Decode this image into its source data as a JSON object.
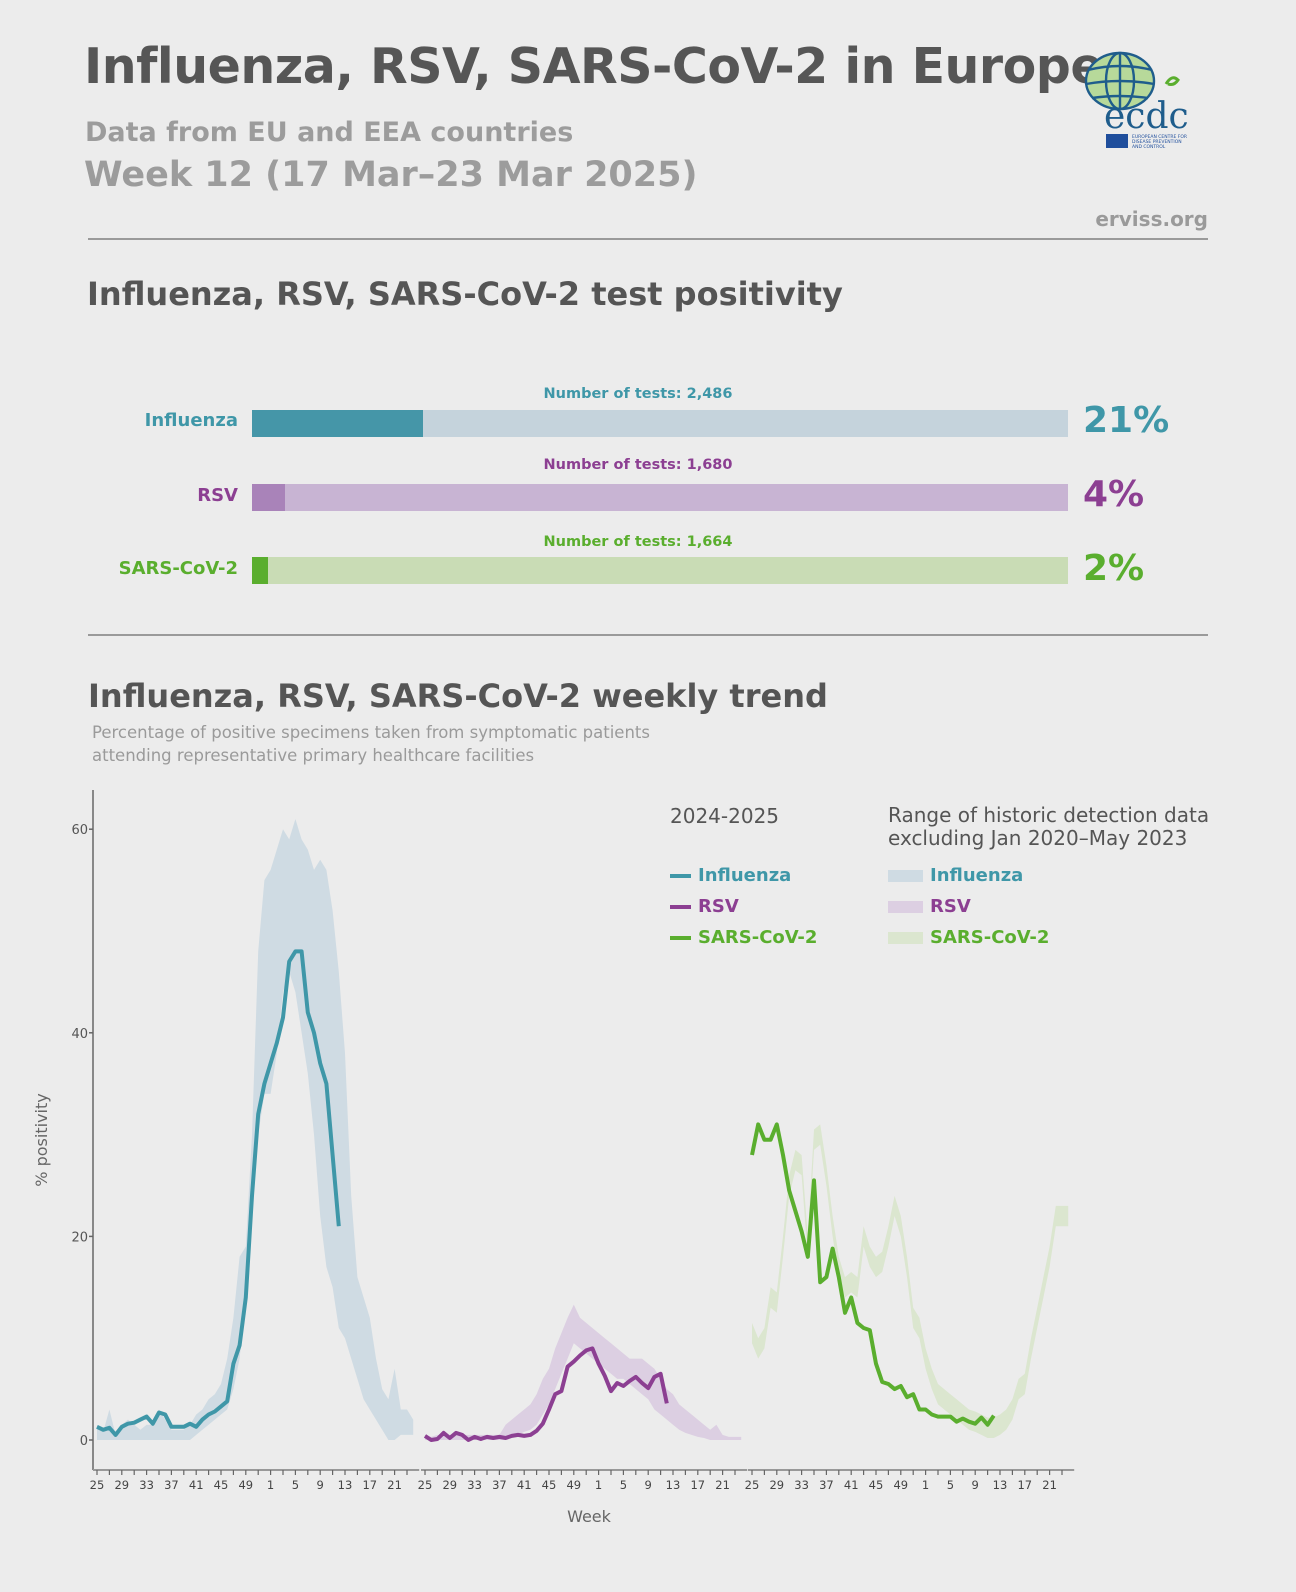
{
  "header": {
    "title": "Influenza, RSV, SARS-CoV-2 in Europe",
    "subtitle": "Data from EU and EEA countries",
    "week": "Week 12 (17 Mar–23 Mar 2025)",
    "site": "erviss.org",
    "logo": {
      "text": "ecdc",
      "caption": "EUROPEAN CENTRE FOR DISEASE PREVENTION AND CONTROL"
    }
  },
  "positivity": {
    "title": "Influenza, RSV, SARS-CoV-2 test positivity",
    "rows": [
      {
        "label": "Influenza",
        "tests": "Number of tests: 2,486",
        "percent_label": "21%",
        "percent": 21,
        "color": "#3f97a8",
        "fill": "#4596a8",
        "track": "#c5d3dc"
      },
      {
        "label": "RSV",
        "tests": "Number of tests: 1,680",
        "percent_label": "4%",
        "percent": 4,
        "color": "#8c3f92",
        "fill": "#a983b9",
        "track": "#c8b4d3"
      },
      {
        "label": "SARS-CoV-2",
        "tests": "Number of tests: 1,664",
        "percent_label": "2%",
        "percent": 2,
        "color": "#5aae2e",
        "fill": "#5aae2e",
        "track": "#c9dcb5"
      }
    ]
  },
  "trend": {
    "title": "Influenza, RSV, SARS-CoV-2 weekly trend",
    "subtitle_1": "Percentage of positive specimens taken from symptomatic patients",
    "subtitle_2": "attending representative primary healthcare facilities",
    "legend": {
      "season_title": "2024-2025",
      "historic_title_1": "Range of historic detection data",
      "historic_title_2": "excluding Jan 2020–May 2023",
      "items": [
        "Influenza",
        "RSV",
        "SARS-CoV-2"
      ]
    }
  },
  "chart_data": {
    "type": "line",
    "xlabel": "Week",
    "ylabel": "% positivity",
    "ylim": [
      0,
      62
    ],
    "yticks": [
      0,
      20,
      40,
      60
    ],
    "xticks": [
      25,
      29,
      33,
      37,
      41,
      45,
      49,
      1,
      5,
      9,
      13,
      17,
      21
    ],
    "weeks": [
      25,
      26,
      27,
      28,
      29,
      30,
      31,
      32,
      33,
      34,
      35,
      36,
      37,
      38,
      39,
      40,
      41,
      42,
      43,
      44,
      45,
      46,
      47,
      48,
      49,
      50,
      51,
      52,
      1,
      2,
      3,
      4,
      5,
      6,
      7,
      8,
      9,
      10,
      11,
      12,
      13,
      14,
      15,
      16,
      17,
      18,
      19,
      20,
      21,
      22,
      23,
      24
    ],
    "grid": false,
    "panels": [
      {
        "name": "Influenza",
        "color": "#3f97a8",
        "band_color": "#cfdbe3",
        "season_2024_2025": [
          1.3,
          1,
          1.2,
          0.5,
          1.3,
          1.6,
          1.7,
          2,
          2.3,
          1.6,
          2.7,
          2.5,
          1.3,
          1.3,
          1.3,
          1.6,
          1.3,
          2,
          2.5,
          2.8,
          3.3,
          3.8,
          7.5,
          9.3,
          14,
          24,
          32,
          35,
          37,
          39,
          41.5,
          47,
          48,
          48,
          42,
          40,
          37,
          35,
          28,
          21
        ],
        "historic_min": [
          0,
          0,
          0,
          0,
          0,
          0,
          0,
          0,
          0,
          0,
          0,
          0,
          0,
          0,
          0,
          0,
          0.5,
          1,
          1.5,
          2,
          2.5,
          3,
          5,
          8,
          14,
          22,
          30,
          34,
          34,
          38,
          44,
          46,
          44,
          40,
          36,
          30,
          22,
          17,
          15,
          11,
          10,
          8,
          6,
          4,
          3,
          2,
          1,
          0,
          0,
          0.5,
          0.5,
          0.5
        ],
        "historic_max": [
          1.5,
          0.8,
          3,
          0.5,
          1.5,
          2,
          1.5,
          1,
          1.5,
          1.5,
          3,
          2,
          1,
          1,
          1,
          1.5,
          2.5,
          3,
          4,
          4.5,
          5.5,
          8,
          12,
          18,
          19,
          30,
          48,
          55,
          56,
          58,
          60,
          59,
          61,
          59,
          58,
          56,
          57,
          56,
          52,
          46,
          38,
          24,
          16,
          14,
          12,
          8,
          5,
          4,
          7,
          3,
          3,
          2
        ]
      },
      {
        "name": "RSV",
        "color": "#8c3f92",
        "band_color": "#dccfe2",
        "season_2024_2025": [
          0.4,
          0,
          0.1,
          0.7,
          0.2,
          0.7,
          0.5,
          0,
          0.3,
          0.1,
          0.3,
          0.2,
          0.3,
          0.2,
          0.4,
          0.5,
          0.4,
          0.5,
          0.9,
          1.6,
          3,
          4.5,
          4.8,
          7.2,
          7.7,
          8.3,
          8.8,
          9,
          7.5,
          6.3,
          4.8,
          5.6,
          5.3,
          5.8,
          6.2,
          5.6,
          5.1,
          6.2,
          6.5,
          3.6
        ],
        "historic_min": [
          0,
          0,
          0,
          0,
          0,
          0,
          0,
          0,
          0,
          0,
          0,
          0,
          0,
          0,
          0.3,
          0.5,
          0.8,
          1,
          1.5,
          2.5,
          3.5,
          5,
          6.5,
          8,
          9.5,
          9,
          8.5,
          8,
          7.5,
          7,
          6.5,
          6,
          6,
          5.5,
          5,
          4.5,
          4,
          3,
          2.5,
          2,
          1.5,
          1,
          0.7,
          0.5,
          0.3,
          0.2,
          0,
          0,
          0,
          0,
          0,
          0
        ],
        "historic_max": [
          0.5,
          0.3,
          0.5,
          0.5,
          0.5,
          0.5,
          0.5,
          0.5,
          0.5,
          0.5,
          0.5,
          0.5,
          0.5,
          1.5,
          2,
          2.5,
          3,
          3.5,
          4.5,
          6,
          7,
          9,
          10.5,
          12,
          13.3,
          12,
          11.5,
          11,
          10.5,
          10,
          9.5,
          9,
          8.5,
          8,
          8,
          8,
          7.5,
          7,
          6,
          5,
          4.5,
          3.5,
          3,
          2.5,
          2,
          1.5,
          1,
          1.5,
          0.5,
          0.3,
          0.3,
          0.3
        ]
      },
      {
        "name": "SARS-CoV-2",
        "color": "#5aae2e",
        "band_color": "#dbe6cf",
        "season_2024_2025": [
          28,
          31,
          29.5,
          29.5,
          31,
          28,
          24.5,
          22.5,
          20.5,
          18,
          25.5,
          15.5,
          16,
          18.8,
          16,
          12.5,
          14,
          11.5,
          11,
          10.8,
          7.5,
          5.7,
          5.5,
          5,
          5.3,
          4.2,
          4.5,
          3,
          3,
          2.5,
          2.3,
          2.3,
          2.3,
          1.8,
          2.1,
          1.8,
          1.6,
          2.2,
          1.5,
          2.4
        ],
        "historic_min": [
          9.5,
          8,
          9,
          13,
          12.5,
          18,
          24,
          26.5,
          26,
          18,
          28.5,
          29,
          25,
          20,
          16,
          14,
          14.5,
          14,
          19,
          17,
          16,
          16.5,
          19,
          22,
          20,
          16,
          11,
          10,
          7,
          5,
          3.5,
          3,
          2.5,
          2,
          1.5,
          1,
          0.8,
          0.5,
          0.2,
          0.2,
          0.5,
          1,
          2,
          4,
          4.5,
          8,
          11,
          14,
          17,
          21,
          21,
          21
        ],
        "historic_max": [
          11.5,
          10,
          11,
          15,
          14.5,
          20,
          26,
          28.5,
          28,
          20,
          30.5,
          31,
          27,
          22,
          18,
          16,
          16.5,
          16,
          21,
          19,
          18,
          18.5,
          21,
          24,
          22,
          18,
          13,
          12,
          9,
          7,
          5.5,
          5,
          4.5,
          4,
          3.5,
          3,
          2.8,
          2.5,
          2.2,
          2.2,
          2.5,
          3,
          4,
          6,
          6.5,
          10,
          13,
          16,
          19,
          23,
          23,
          23
        ]
      }
    ]
  }
}
